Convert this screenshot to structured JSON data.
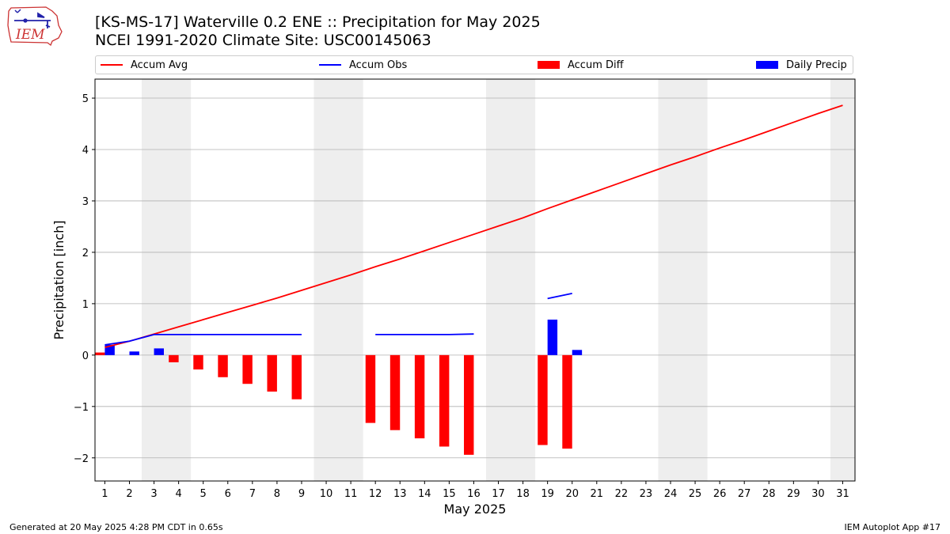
{
  "logo": {
    "text": "IEM"
  },
  "title_line1": "[KS-MS-17] Waterville 0.2 ENE :: Precipitation for May 2025",
  "title_line2": "NCEI 1991-2020 Climate Site: USC00145063",
  "legend": {
    "accum_avg": "Accum Avg",
    "accum_obs": "Accum Obs",
    "accum_diff": "Accum Diff",
    "daily_precip": "Daily Precip"
  },
  "colors": {
    "accum_avg": "#ff0000",
    "accum_obs": "#0000ff",
    "accum_diff": "#ff0000",
    "daily_precip": "#0000ff",
    "weekend_shade": "#eeeeee",
    "grid": "#b0b0b0"
  },
  "footer": {
    "left": "Generated at 20 May 2025 4:28 PM CDT in 0.65s",
    "right": "IEM Autoplot App #17"
  },
  "chart_data": {
    "type": "bar",
    "xlabel": "May 2025",
    "ylabel": "Precipitation [inch]",
    "xlim": [
      0.6,
      31.5
    ],
    "ylim": [
      -2.45,
      5.37
    ],
    "yticks": [
      -2,
      -1,
      0,
      1,
      2,
      3,
      4,
      5
    ],
    "ytick_labels": [
      "−2",
      "−1",
      "0",
      "1",
      "2",
      "3",
      "4",
      "5"
    ],
    "xticks": [
      1,
      2,
      3,
      4,
      5,
      6,
      7,
      8,
      9,
      10,
      11,
      12,
      13,
      14,
      15,
      16,
      17,
      18,
      19,
      20,
      21,
      22,
      23,
      24,
      25,
      26,
      27,
      28,
      29,
      30,
      31
    ],
    "grid": true,
    "legend_position": "top",
    "weekend_shading": [
      [
        2.5,
        4.5
      ],
      [
        9.5,
        11.5
      ],
      [
        16.5,
        18.5
      ],
      [
        23.5,
        25.5
      ],
      [
        30.5,
        31.5
      ]
    ],
    "accum_avg": {
      "name": "Accum Avg",
      "x": [
        1,
        2,
        3,
        4,
        5,
        6,
        7,
        8,
        9,
        10,
        11,
        12,
        13,
        14,
        15,
        16,
        17,
        18,
        19,
        20,
        21,
        22,
        23,
        24,
        25,
        26,
        27,
        28,
        29,
        30,
        31
      ],
      "values": [
        0.15,
        0.27,
        0.41,
        0.55,
        0.69,
        0.83,
        0.97,
        1.11,
        1.26,
        1.41,
        1.56,
        1.72,
        1.87,
        2.03,
        2.19,
        2.35,
        2.51,
        2.67,
        2.85,
        3.02,
        3.19,
        3.36,
        3.53,
        3.7,
        3.86,
        4.03,
        4.19,
        4.36,
        4.53,
        4.7,
        4.86
      ]
    },
    "accum_obs": {
      "name": "Accum Obs",
      "segments": [
        {
          "x": [
            1,
            2,
            3,
            4,
            5,
            6,
            7,
            8,
            9
          ],
          "values": [
            0.2,
            0.27,
            0.4,
            0.4,
            0.4,
            0.4,
            0.4,
            0.4,
            0.4
          ]
        },
        {
          "x": [
            12,
            13,
            14,
            15,
            16
          ],
          "values": [
            0.4,
            0.4,
            0.4,
            0.4,
            0.41
          ]
        },
        {
          "x": [
            19,
            20
          ],
          "values": [
            1.1,
            1.2
          ]
        }
      ]
    },
    "accum_diff": {
      "name": "Accum Diff",
      "x": [
        1,
        4,
        5,
        6,
        7,
        8,
        9,
        12,
        13,
        14,
        15,
        16,
        19,
        20
      ],
      "values": [
        0.05,
        -0.14,
        -0.28,
        -0.43,
        -0.56,
        -0.71,
        -0.86,
        -1.32,
        -1.46,
        -1.62,
        -1.78,
        -1.94,
        -1.75,
        -1.82
      ]
    },
    "daily_precip": {
      "name": "Daily Precip",
      "x": [
        1,
        2,
        3,
        19,
        20
      ],
      "values": [
        0.2,
        0.07,
        0.13,
        0.69,
        0.1
      ]
    }
  }
}
